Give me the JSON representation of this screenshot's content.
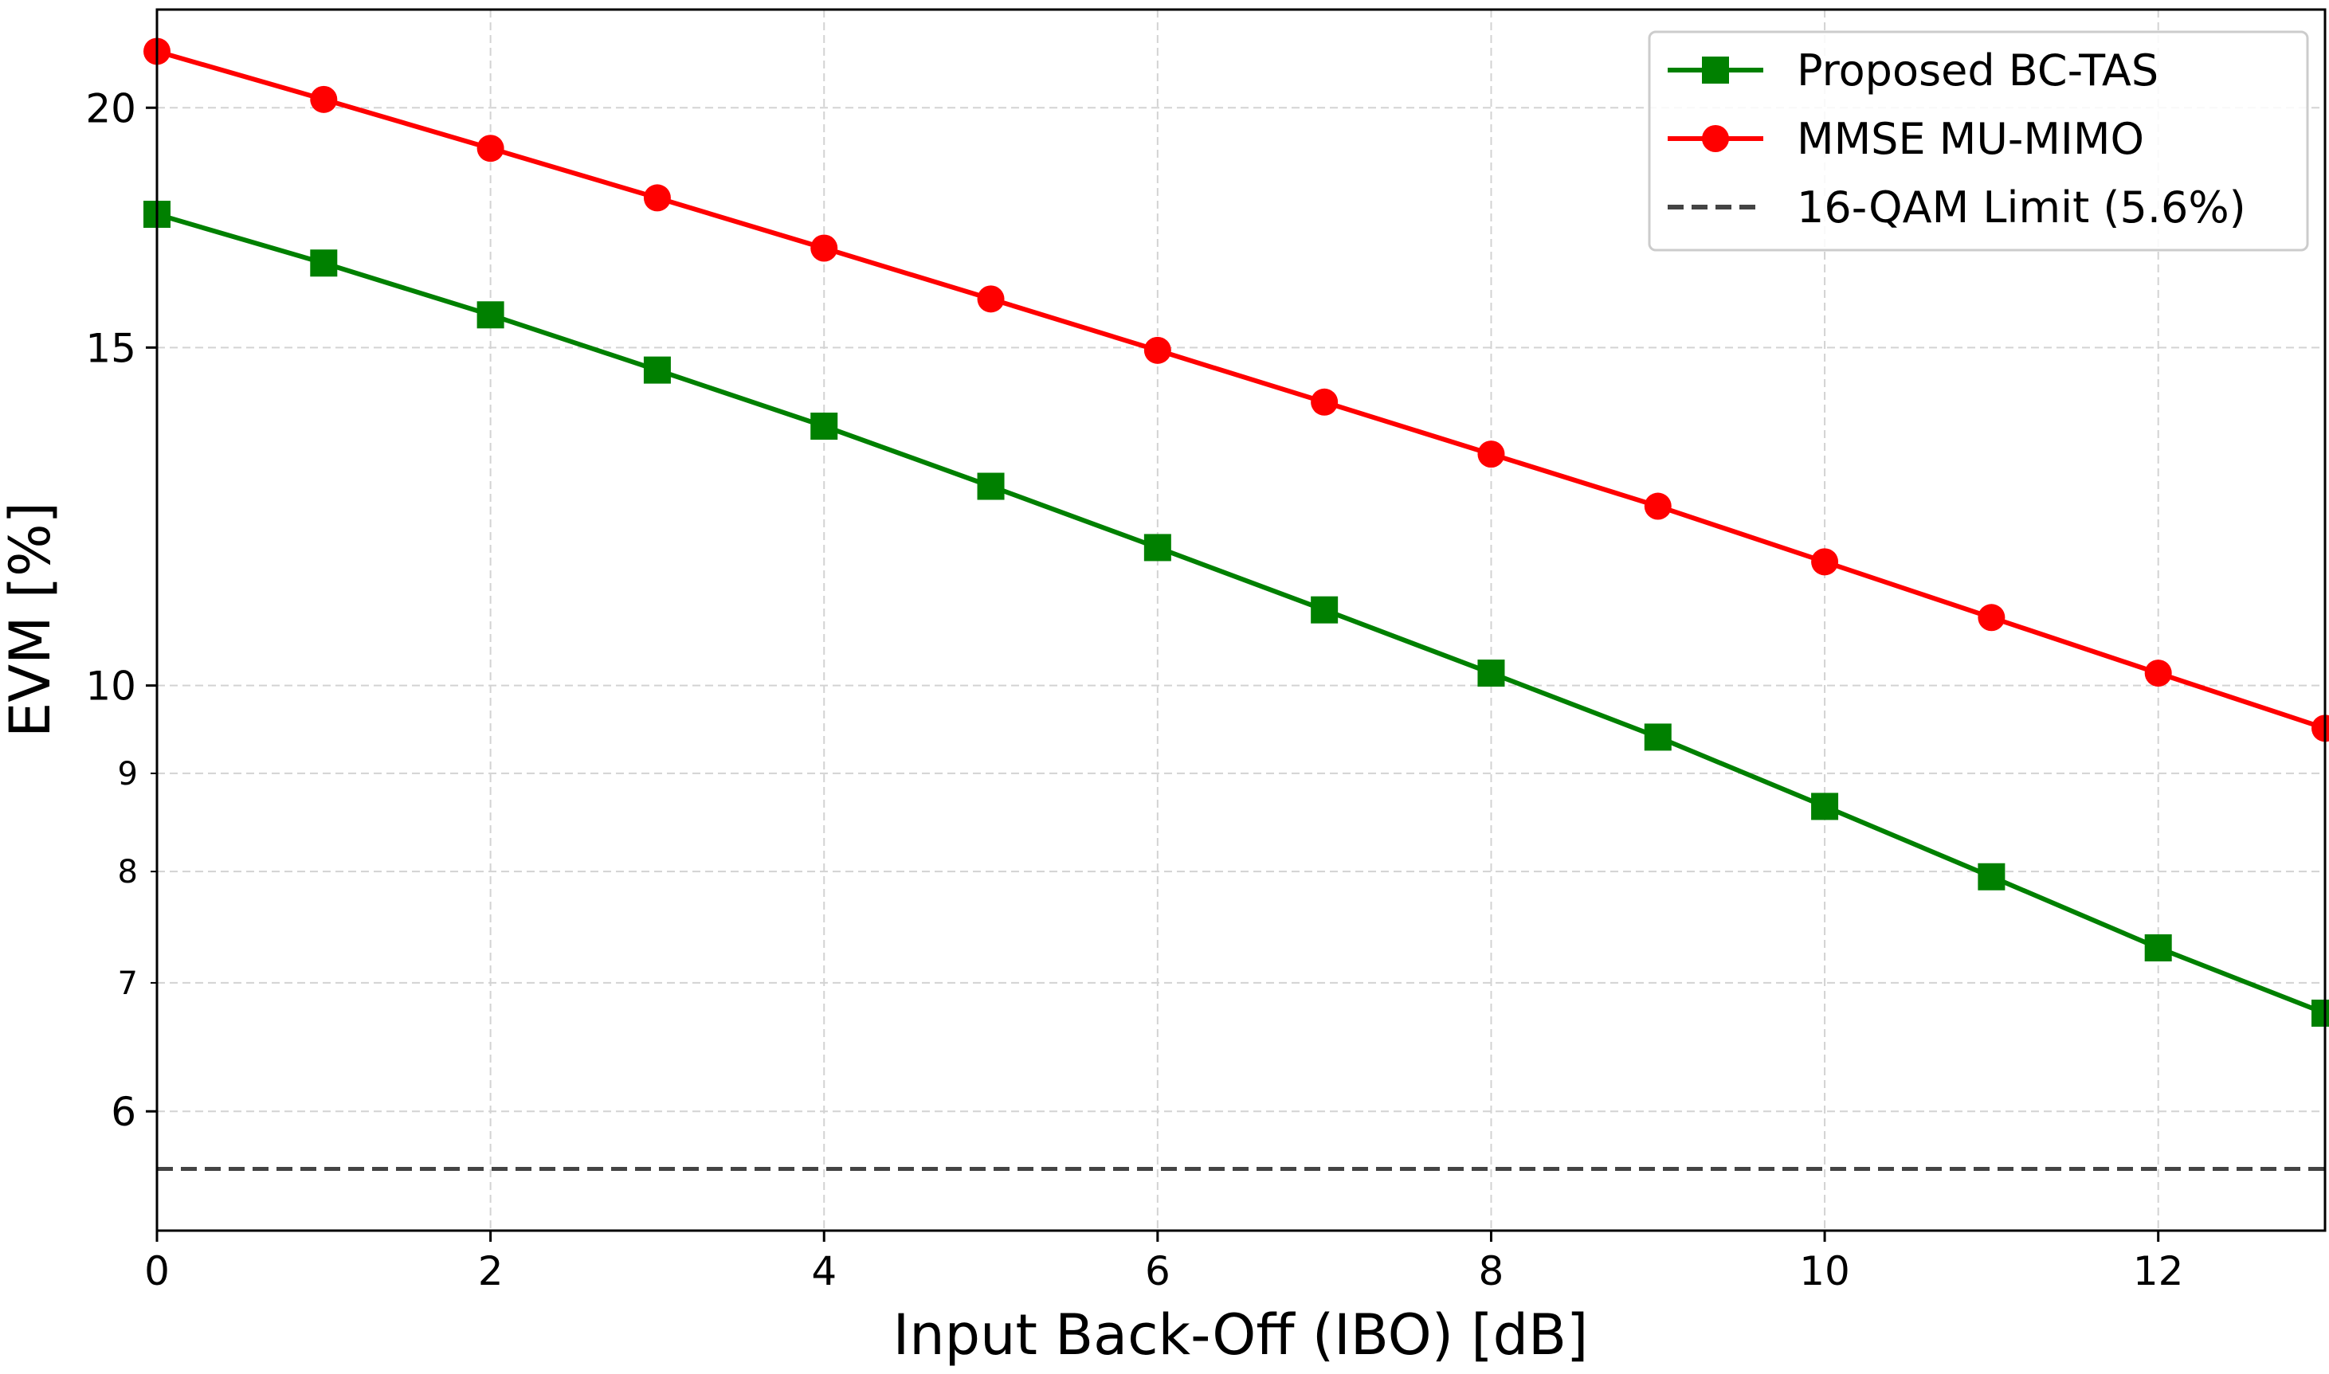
{
  "chart_data": {
    "type": "line",
    "title": "",
    "xlabel": "Input Back-Off (IBO) [dB]",
    "ylabel": "EVM [%]",
    "xlim": [
      0,
      13
    ],
    "ylim": [
      5.2,
      22.5
    ],
    "yscale": "log",
    "grid": true,
    "legend_position": "top-right",
    "x_ticks": [
      0,
      2,
      4,
      6,
      8,
      10,
      12
    ],
    "x_tick_labels": [
      "0",
      "2",
      "4",
      "6",
      "8",
      "10",
      "12"
    ],
    "y_major_ticks": [
      6,
      10,
      15,
      20
    ],
    "y_major_tick_labels": [
      "6",
      "10",
      "15",
      "20"
    ],
    "y_minor_ticks": [
      7,
      8,
      9
    ],
    "y_minor_tick_labels": [
      "7",
      "8",
      "9"
    ],
    "x": [
      0,
      1,
      2,
      3,
      4,
      5,
      6,
      7,
      8,
      9,
      10,
      11,
      12,
      13
    ],
    "series": [
      {
        "name": "Proposed BC-TAS",
        "color": "#008000",
        "marker": "square",
        "values": [
          17.6,
          16.6,
          15.6,
          14.6,
          13.65,
          12.7,
          11.8,
          10.95,
          10.15,
          9.4,
          8.65,
          7.95,
          7.3,
          6.75
        ]
      },
      {
        "name": "MMSE MU-MIMO",
        "color": "#ff0000",
        "marker": "circle",
        "values": [
          21.4,
          20.2,
          19.05,
          17.95,
          16.9,
          15.9,
          14.95,
          14.05,
          13.2,
          12.4,
          11.6,
          10.85,
          10.15,
          9.5
        ]
      }
    ],
    "reference_lines": [
      {
        "name": "16-QAM Limit (5.6%)",
        "y": 5.6,
        "color": "#444444",
        "style": "dashed"
      }
    ]
  }
}
